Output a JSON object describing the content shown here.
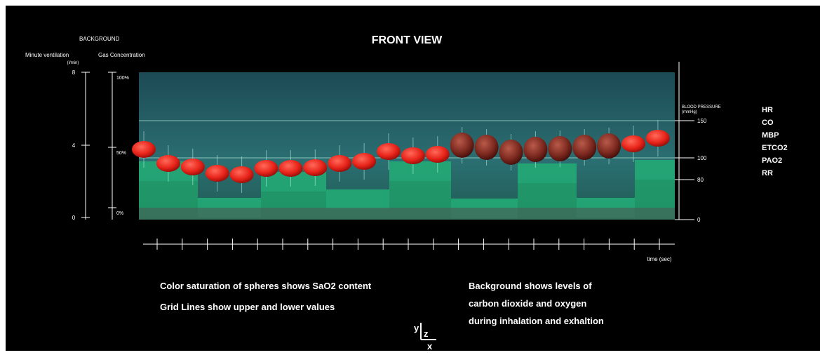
{
  "header": {
    "background": "BACKGROUND",
    "title": "FRONT VIEW"
  },
  "left_axes": {
    "ventilation_label": "Minute ventilation",
    "ventilation_unit": "(l/min)",
    "ventilation_ticks": [
      "8",
      "4",
      "0"
    ],
    "gas_label": "Gas Concentration",
    "gas_ticks": [
      "100%",
      "50%",
      "0%"
    ]
  },
  "right_axis": {
    "label": "BLOOD PRESSURE",
    "unit": "(mmHg)",
    "ticks": [
      "150",
      "100",
      "80",
      "0"
    ]
  },
  "legend": [
    "HR",
    "CO",
    "MBP",
    "ETCO2",
    "PAO2",
    "RR"
  ],
  "time_axis": {
    "label": "time (sec)"
  },
  "notes": {
    "left": [
      "Color saturation of spheres shows SaO2 content",
      "Grid Lines show upper and lower values"
    ],
    "right": [
      "Background shows levels of",
      "carbon dioxide and oxygen",
      "during inhalation and exhaltion"
    ]
  },
  "orientation": {
    "y": "y",
    "z": "z",
    "x": "x"
  }
}
